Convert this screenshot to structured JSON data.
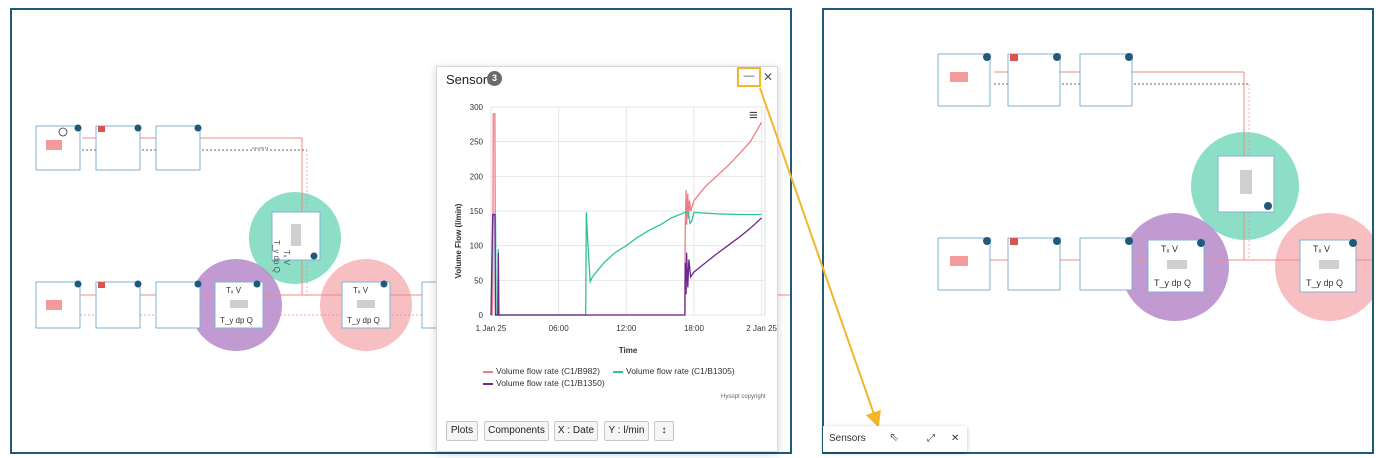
{
  "sensors_window": {
    "title": "Sensors",
    "count": "3",
    "minimize_label": "—",
    "close_label": "✕",
    "menu_label": "≡",
    "copyright": "Hysopt copyright",
    "toolbar": {
      "plots": "Plots",
      "components": "Components",
      "x_axis": "X : Date",
      "y_axis": "Y : l/min",
      "sort": "↕"
    }
  },
  "minimized_bar": {
    "title": "Sensors",
    "expand_label": "⤢",
    "close_label": "✕"
  },
  "schematic": {
    "pipe_label_1": "2.0m DN 74",
    "pipe_label_2": "Steel pipe (welded)",
    "tv_label": "Tₓ V",
    "tdpq_label": "T_y dp Q",
    "tdpq_rotated": "T_y dp Q",
    "tv_rotated": "Tₓ V",
    "highlight_colors": {
      "green": "#7fdcc0",
      "purple": "#b98fcb",
      "pink": "#f7b8bd"
    }
  },
  "chart_data": {
    "type": "line",
    "title": "",
    "xlabel": "Time",
    "ylabel": "Volume Flow (l/min)",
    "x_ticks": [
      "1 Jan 25",
      "06:00",
      "12:00",
      "18:00",
      "2 Jan 25"
    ],
    "x_tick_hours": [
      0,
      6,
      12,
      18,
      24
    ],
    "xlim_hours": [
      0,
      24.3
    ],
    "ylim": [
      0,
      300
    ],
    "y_ticks": [
      0,
      50,
      100,
      150,
      200,
      250,
      300
    ],
    "grid": true,
    "legend_position": "bottom",
    "series": [
      {
        "name": "Volume flow rate (C1/B982)",
        "color": "#f07c84",
        "points": [
          [
            0,
            0
          ],
          [
            0.1,
            0
          ],
          [
            0.15,
            20
          ],
          [
            0.2,
            290
          ],
          [
            0.3,
            290
          ],
          [
            0.35,
            290
          ],
          [
            0.4,
            0
          ],
          [
            1.0,
            0
          ],
          [
            6.0,
            0
          ],
          [
            12.0,
            0
          ],
          [
            17.2,
            0
          ],
          [
            17.22,
            120
          ],
          [
            17.3,
            180
          ],
          [
            17.35,
            130
          ],
          [
            17.45,
            175
          ],
          [
            17.5,
            140
          ],
          [
            17.6,
            165
          ],
          [
            17.7,
            150
          ],
          [
            18.0,
            165
          ],
          [
            19.0,
            185
          ],
          [
            20.0,
            200
          ],
          [
            21.0,
            215
          ],
          [
            22.0,
            232
          ],
          [
            23.0,
            250
          ],
          [
            24.0,
            278
          ]
        ]
      },
      {
        "name": "Volume flow rate (C1/B1305)",
        "color": "#2fc39a",
        "points": [
          [
            0,
            0
          ],
          [
            0.2,
            145
          ],
          [
            0.4,
            145
          ],
          [
            0.45,
            0
          ],
          [
            0.6,
            0
          ],
          [
            0.65,
            95
          ],
          [
            0.7,
            0
          ],
          [
            1.0,
            0
          ],
          [
            6.0,
            0
          ],
          [
            8.4,
            0
          ],
          [
            8.45,
            148
          ],
          [
            8.6,
            100
          ],
          [
            8.8,
            48
          ],
          [
            9.0,
            55
          ],
          [
            10.0,
            75
          ],
          [
            11.0,
            90
          ],
          [
            12.0,
            100
          ],
          [
            13.0,
            112
          ],
          [
            14.0,
            122
          ],
          [
            15.0,
            130
          ],
          [
            16.0,
            140
          ],
          [
            17.2,
            148
          ],
          [
            17.5,
            148
          ],
          [
            17.65,
            132
          ],
          [
            17.8,
            135
          ],
          [
            18.0,
            148
          ],
          [
            20.0,
            146
          ],
          [
            22.0,
            145
          ],
          [
            24.0,
            145
          ]
        ]
      },
      {
        "name": "Volume flow rate (C1/B1350)",
        "color": "#6c2a8c",
        "points": [
          [
            0,
            0
          ],
          [
            0.15,
            145
          ],
          [
            0.35,
            145
          ],
          [
            0.4,
            0
          ],
          [
            0.6,
            0
          ],
          [
            0.65,
            90
          ],
          [
            0.7,
            0
          ],
          [
            1.0,
            0
          ],
          [
            6.0,
            0
          ],
          [
            12.0,
            0
          ],
          [
            17.2,
            0
          ],
          [
            17.22,
            75
          ],
          [
            17.3,
            30
          ],
          [
            17.35,
            90
          ],
          [
            17.45,
            40
          ],
          [
            17.55,
            80
          ],
          [
            17.7,
            55
          ],
          [
            18.0,
            62
          ],
          [
            19.0,
            75
          ],
          [
            20.0,
            88
          ],
          [
            21.0,
            100
          ],
          [
            22.0,
            112
          ],
          [
            23.0,
            125
          ],
          [
            24.0,
            140
          ]
        ]
      }
    ]
  }
}
